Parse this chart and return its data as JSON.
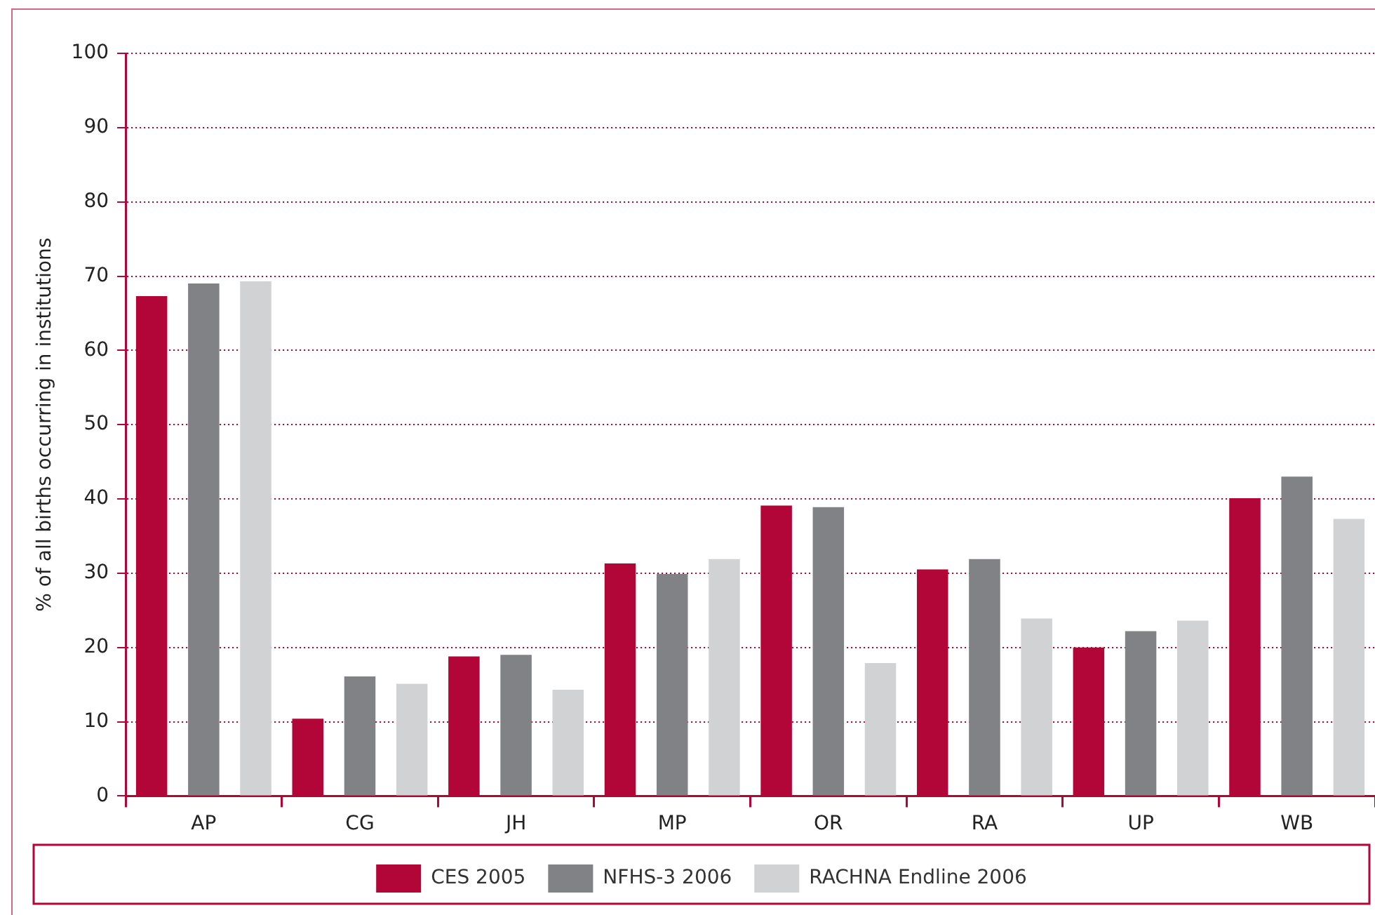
{
  "chart_data": {
    "type": "bar",
    "ylabel": "% of all births occurring in institutions",
    "categories": [
      "AP",
      "CG",
      "JH",
      "MP",
      "OR",
      "RA",
      "UP",
      "WB"
    ],
    "series": [
      {
        "name": "CES 2005",
        "color": "#b20538",
        "values": [
          67.3,
          10.4,
          18.8,
          31.3,
          39.1,
          30.5,
          20,
          40.1
        ]
      },
      {
        "name": "NFHS-3 2006",
        "color": "#818286",
        "values": [
          69,
          16.1,
          19,
          29.9,
          38.9,
          31.9,
          22.2,
          43
        ]
      },
      {
        "name": "RACHNA Endline 2006",
        "color": "#d1d2d4",
        "values": [
          69.3,
          15.1,
          14.3,
          31.9,
          17.9,
          23.9,
          23.6,
          37.3
        ]
      }
    ],
    "ylim": [
      0,
      100
    ],
    "yticks": [
      0,
      10,
      20,
      30,
      40,
      50,
      60,
      70,
      80,
      90,
      100
    ],
    "grid": "y",
    "legend": "bottom"
  }
}
